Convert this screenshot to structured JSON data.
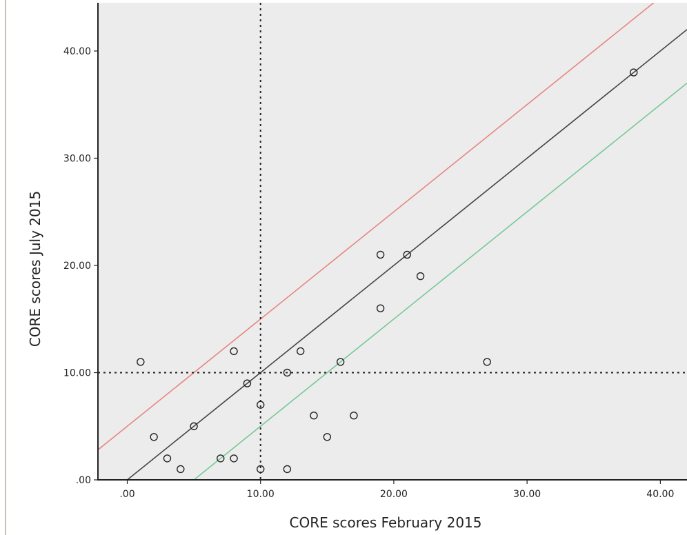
{
  "chart_data": {
    "type": "scatter",
    "title": "",
    "xlabel": "CORE scores February 2015",
    "ylabel": "CORE scores July 2015",
    "xlim": [
      -2.2,
      42
    ],
    "ylim": [
      0,
      44.5
    ],
    "x_ticks": [
      0,
      10,
      20,
      30,
      40
    ],
    "x_tick_labels": [
      ".00",
      "10.00",
      "20.00",
      "30.00",
      "40.00"
    ],
    "y_ticks": [
      0,
      10,
      20,
      30,
      40
    ],
    "y_tick_labels": [
      ".00",
      "10.00",
      "20.00",
      "30.00",
      "40.00"
    ],
    "grid": false,
    "points": [
      {
        "x": 1,
        "y": 11
      },
      {
        "x": 2,
        "y": 4
      },
      {
        "x": 3,
        "y": 2
      },
      {
        "x": 4,
        "y": 1
      },
      {
        "x": 5,
        "y": 5
      },
      {
        "x": 7,
        "y": 2
      },
      {
        "x": 8,
        "y": 2
      },
      {
        "x": 8,
        "y": 12
      },
      {
        "x": 9,
        "y": 9
      },
      {
        "x": 10,
        "y": 7
      },
      {
        "x": 10,
        "y": 1
      },
      {
        "x": 12,
        "y": 10
      },
      {
        "x": 12,
        "y": 1
      },
      {
        "x": 13,
        "y": 12
      },
      {
        "x": 14,
        "y": 6
      },
      {
        "x": 15,
        "y": 4
      },
      {
        "x": 16,
        "y": 11
      },
      {
        "x": 17,
        "y": 6
      },
      {
        "x": 19,
        "y": 21
      },
      {
        "x": 19,
        "y": 16
      },
      {
        "x": 21,
        "y": 21
      },
      {
        "x": 22,
        "y": 19
      },
      {
        "x": 27,
        "y": 11
      },
      {
        "x": 38,
        "y": 38
      }
    ],
    "reference_lines": [
      {
        "kind": "diagonal",
        "intercept": 0,
        "slope": 1,
        "color": "#444444",
        "style": "solid"
      },
      {
        "kind": "diagonal",
        "intercept": 5,
        "slope": 1,
        "color": "#e88580",
        "style": "solid"
      },
      {
        "kind": "diagonal",
        "intercept": -5,
        "slope": 1,
        "color": "#74c997",
        "style": "solid"
      },
      {
        "kind": "vertical",
        "value": 10,
        "color": "#222222",
        "style": "dotted"
      },
      {
        "kind": "horizontal",
        "value": 10,
        "color": "#222222",
        "style": "dotted"
      }
    ],
    "colors": {
      "plot_background": "#ececec",
      "axis": "#222222",
      "marker": "#222222"
    }
  }
}
